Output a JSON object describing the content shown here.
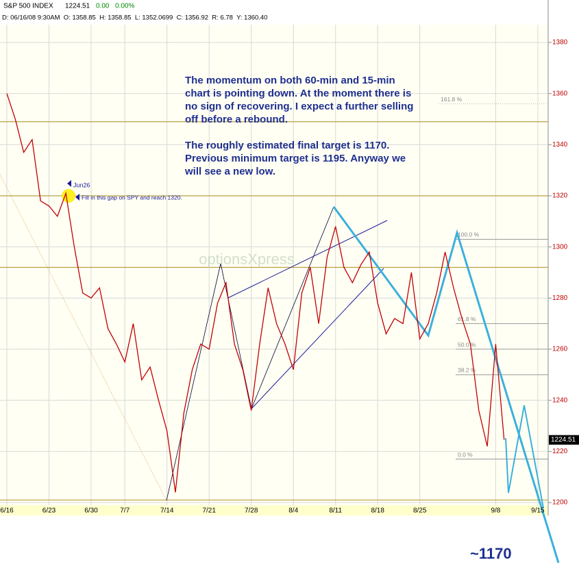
{
  "header": {
    "symbol": "S&P 500 INDEX",
    "last": "1224.51",
    "change": "0.00",
    "change_pct": "0.00%",
    "detail": "D: 06/16/08 9:30AM  O: 1358.85  H: 1358.85  L: 1352.0699  C: 1356.92  R: 6.78  Y: 1360.40"
  },
  "chart_data": {
    "type": "line",
    "color": "#c00000",
    "x": [
      "6/16",
      "6/17",
      "6/18",
      "6/19",
      "6/20",
      "6/23",
      "6/24",
      "6/25",
      "6/26",
      "6/27",
      "6/30",
      "7/1",
      "7/2",
      "7/3",
      "7/7",
      "7/8",
      "7/9",
      "7/10",
      "7/11",
      "7/14",
      "7/15",
      "7/16",
      "7/17",
      "7/18",
      "7/21",
      "7/22",
      "7/23",
      "7/24",
      "7/25",
      "7/28",
      "7/29",
      "7/30",
      "7/31",
      "8/1",
      "8/4",
      "8/5",
      "8/6",
      "8/7",
      "8/8",
      "8/11",
      "8/12",
      "8/13",
      "8/14",
      "8/15",
      "8/18",
      "8/19",
      "8/20",
      "8/21",
      "8/22",
      "8/25",
      "8/26",
      "8/27",
      "8/28",
      "8/29",
      "9/2",
      "9/3",
      "9/4",
      "9/5",
      "9/8",
      "9/9",
      "9/10",
      "9/11",
      "9/12",
      "9/15"
    ],
    "values": [
      1360,
      1350,
      1337,
      1342,
      1318,
      1316,
      1312,
      1321,
      1300,
      1282,
      1280,
      1284,
      1268,
      1262,
      1255,
      1270,
      1248,
      1253,
      1240,
      1228,
      1204,
      1235,
      1252,
      1262,
      1260,
      1278,
      1286,
      1262,
      1252,
      1236,
      1262,
      1284,
      1270,
      1262,
      1252,
      1282,
      1292,
      1270,
      1296,
      1308,
      1292,
      1286,
      1293,
      1298,
      1278,
      1266,
      1272,
      1270,
      1290,
      1264,
      1270,
      1282,
      1298,
      1284,
      1272,
      1262,
      1236,
      1222,
      1262,
      1224.51,
      null,
      null,
      null,
      null
    ],
    "xticks": [
      {
        "value": 0,
        "label": "6/16"
      },
      {
        "value": 5,
        "label": "6/23"
      },
      {
        "value": 10,
        "label": "6/30"
      },
      {
        "value": 14,
        "label": "7/7"
      },
      {
        "value": 19,
        "label": "7/14"
      },
      {
        "value": 24,
        "label": "7/21"
      },
      {
        "value": 29,
        "label": "7/28"
      },
      {
        "value": 34,
        "label": "8/4"
      },
      {
        "value": 39,
        "label": "8/11"
      },
      {
        "value": 44,
        "label": "8/18"
      },
      {
        "value": 49,
        "label": "8/25"
      },
      {
        "value": 58,
        "label": "9/8"
      },
      {
        "value": 63,
        "label": "9/15"
      }
    ],
    "ylim": [
      1198.4,
      1396.6
    ],
    "yticks": [
      1200,
      1220,
      1240,
      1260,
      1280,
      1300,
      1320,
      1340,
      1360,
      1380
    ],
    "grid": true,
    "last_price": {
      "value": 1224.51,
      "label": "1224.51"
    },
    "horizontal_lines": [
      1349,
      1320,
      1292,
      1201
    ],
    "fib_levels": [
      {
        "value": 1356,
        "label": "161.8 %"
      },
      {
        "value": 1303,
        "label": "100.0 %"
      },
      {
        "value": 1270,
        "label": "61.8 %"
      },
      {
        "value": 1260,
        "label": "50.0 %"
      },
      {
        "value": 1250,
        "label": "38.2 %"
      },
      {
        "value": 1217,
        "label": "0.0 %"
      }
    ],
    "annotation": {
      "lines": [
        "The momentum on both 60-min and 15-min",
        "chart is pointing down.  At the moment there is",
        "no sign of recovering.  I expect a further selling",
        "off before a rebound.",
        "The roughly estimated final target is 1170.",
        "Previous minimum target is 1195.  Anyway we",
        "will see a new low."
      ]
    },
    "marker_label": "Jun26",
    "gap_note": "Fill in this gap on SPY and reach 1320.",
    "watermark": "optionsXpress",
    "target": "~1170"
  }
}
